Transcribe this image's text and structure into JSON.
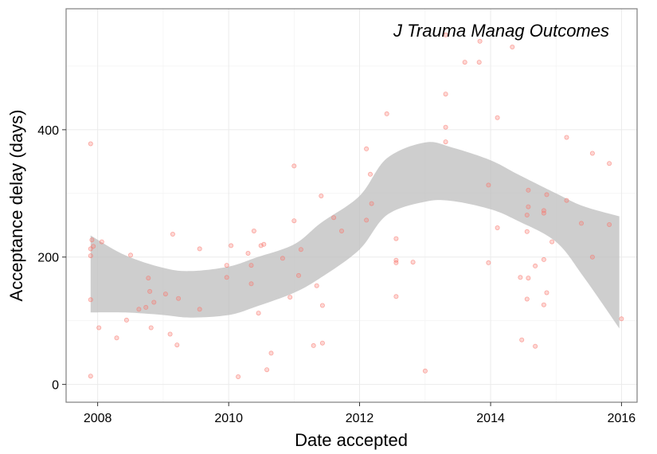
{
  "chart_data": {
    "type": "scatter",
    "title": "",
    "annotation": "J Trauma Manag Outcomes",
    "xlabel": "Date accepted",
    "ylabel": "Acceptance delay (days)",
    "xlim": [
      "2007-07-09",
      "2016-03-28"
    ],
    "ylim": [
      -28,
      590
    ],
    "x_ticks": [
      "2008-01-01",
      "2010-01-01",
      "2012-01-01",
      "2014-01-01",
      "2016-01-01"
    ],
    "x_tick_labels": [
      "2008",
      "2010",
      "2012",
      "2014",
      "2016"
    ],
    "y_ticks": [
      0,
      200,
      400
    ],
    "y_tick_labels": [
      "0",
      "200",
      "400"
    ],
    "grid": true,
    "point_color": "#f8766d",
    "ribbon_color": "#bdbdbd",
    "points": [
      {
        "x": "2007-11-23",
        "y": 378
      },
      {
        "x": "2007-11-23",
        "y": 213
      },
      {
        "x": "2007-11-23",
        "y": 202
      },
      {
        "x": "2007-11-23",
        "y": 133
      },
      {
        "x": "2007-11-23",
        "y": 13
      },
      {
        "x": "2007-11-30",
        "y": 227
      },
      {
        "x": "2007-12-08",
        "y": 217
      },
      {
        "x": "2008-01-08",
        "y": 89
      },
      {
        "x": "2008-01-24",
        "y": 224
      },
      {
        "x": "2008-04-16",
        "y": 73
      },
      {
        "x": "2008-06-10",
        "y": 101
      },
      {
        "x": "2008-07-03",
        "y": 203
      },
      {
        "x": "2008-08-18",
        "y": 118
      },
      {
        "x": "2008-09-26",
        "y": 121
      },
      {
        "x": "2008-10-10",
        "y": 167
      },
      {
        "x": "2008-10-18",
        "y": 146
      },
      {
        "x": "2008-10-25",
        "y": 89
      },
      {
        "x": "2008-11-10",
        "y": 129
      },
      {
        "x": "2009-01-14",
        "y": 142
      },
      {
        "x": "2009-02-08",
        "y": 79
      },
      {
        "x": "2009-02-23",
        "y": 236
      },
      {
        "x": "2009-03-19",
        "y": 62
      },
      {
        "x": "2009-03-27",
        "y": 135
      },
      {
        "x": "2009-07-23",
        "y": 213
      },
      {
        "x": "2009-07-23",
        "y": 118
      },
      {
        "x": "2009-12-21",
        "y": 187
      },
      {
        "x": "2009-12-21",
        "y": 168
      },
      {
        "x": "2010-01-14",
        "y": 218
      },
      {
        "x": "2010-02-23",
        "y": 12
      },
      {
        "x": "2010-04-19",
        "y": 206
      },
      {
        "x": "2010-05-07",
        "y": 187
      },
      {
        "x": "2010-05-07",
        "y": 158
      },
      {
        "x": "2010-05-22",
        "y": 241
      },
      {
        "x": "2010-06-16",
        "y": 112
      },
      {
        "x": "2010-06-30",
        "y": 218
      },
      {
        "x": "2010-07-16",
        "y": 220
      },
      {
        "x": "2010-08-02",
        "y": 23
      },
      {
        "x": "2010-08-26",
        "y": 49
      },
      {
        "x": "2010-10-29",
        "y": 198
      },
      {
        "x": "2010-12-09",
        "y": 137
      },
      {
        "x": "2011-01-01",
        "y": 343
      },
      {
        "x": "2011-01-01",
        "y": 257
      },
      {
        "x": "2011-01-26",
        "y": 171
      },
      {
        "x": "2011-02-08",
        "y": 212
      },
      {
        "x": "2011-04-19",
        "y": 61
      },
      {
        "x": "2011-05-07",
        "y": 155
      },
      {
        "x": "2011-06-01",
        "y": 296
      },
      {
        "x": "2011-06-08",
        "y": 124
      },
      {
        "x": "2011-06-08",
        "y": 65
      },
      {
        "x": "2011-08-10",
        "y": 262
      },
      {
        "x": "2011-09-23",
        "y": 241
      },
      {
        "x": "2012-02-08",
        "y": 370
      },
      {
        "x": "2012-02-08",
        "y": 258
      },
      {
        "x": "2012-03-01",
        "y": 330
      },
      {
        "x": "2012-03-08",
        "y": 284
      },
      {
        "x": "2012-06-01",
        "y": 425
      },
      {
        "x": "2012-07-23",
        "y": 229
      },
      {
        "x": "2012-07-23",
        "y": 195
      },
      {
        "x": "2012-07-23",
        "y": 191
      },
      {
        "x": "2012-07-23",
        "y": 138
      },
      {
        "x": "2012-10-25",
        "y": 192
      },
      {
        "x": "2013-01-01",
        "y": 21
      },
      {
        "x": "2013-04-25",
        "y": 549
      },
      {
        "x": "2013-04-25",
        "y": 456
      },
      {
        "x": "2013-04-25",
        "y": 404
      },
      {
        "x": "2013-04-25",
        "y": 381
      },
      {
        "x": "2013-08-10",
        "y": 506
      },
      {
        "x": "2013-10-29",
        "y": 506
      },
      {
        "x": "2013-11-02",
        "y": 539
      },
      {
        "x": "2013-12-20",
        "y": 313
      },
      {
        "x": "2013-12-20",
        "y": 191
      },
      {
        "x": "2014-02-08",
        "y": 419
      },
      {
        "x": "2014-02-08",
        "y": 246
      },
      {
        "x": "2014-05-02",
        "y": 530
      },
      {
        "x": "2014-06-16",
        "y": 168
      },
      {
        "x": "2014-06-24",
        "y": 70
      },
      {
        "x": "2014-07-23",
        "y": 266
      },
      {
        "x": "2014-07-23",
        "y": 240
      },
      {
        "x": "2014-07-23",
        "y": 134
      },
      {
        "x": "2014-07-30",
        "y": 305
      },
      {
        "x": "2014-07-30",
        "y": 279
      },
      {
        "x": "2014-07-30",
        "y": 167
      },
      {
        "x": "2014-09-07",
        "y": 186
      },
      {
        "x": "2014-09-07",
        "y": 60
      },
      {
        "x": "2014-10-25",
        "y": 273
      },
      {
        "x": "2014-10-25",
        "y": 269
      },
      {
        "x": "2014-10-25",
        "y": 196
      },
      {
        "x": "2014-10-25",
        "y": 125
      },
      {
        "x": "2014-11-10",
        "y": 298
      },
      {
        "x": "2014-11-10",
        "y": 144
      },
      {
        "x": "2014-12-09",
        "y": 224
      },
      {
        "x": "2015-03-01",
        "y": 388
      },
      {
        "x": "2015-03-01",
        "y": 289
      },
      {
        "x": "2015-05-22",
        "y": 253
      },
      {
        "x": "2015-07-23",
        "y": 363
      },
      {
        "x": "2015-07-23",
        "y": 200
      },
      {
        "x": "2015-10-25",
        "y": 347
      },
      {
        "x": "2015-10-25",
        "y": 251
      },
      {
        "x": "2016-01-01",
        "y": 103
      }
    ],
    "smooth_band": {
      "x": [
        "2007-11-23",
        "2008-06-01",
        "2009-01-01",
        "2009-06-01",
        "2010-01-01",
        "2010-06-01",
        "2011-01-01",
        "2011-06-01",
        "2012-01-01",
        "2012-06-01",
        "2013-01-01",
        "2013-06-01",
        "2014-01-01",
        "2014-06-01",
        "2015-01-01",
        "2015-06-01",
        "2015-12-20"
      ],
      "lower": [
        113,
        113,
        109,
        105,
        109,
        122,
        144,
        168,
        212,
        266,
        287,
        288,
        275,
        257,
        224,
        170,
        88
      ],
      "upper": [
        234,
        203,
        183,
        178,
        185,
        199,
        220,
        254,
        296,
        355,
        380,
        372,
        352,
        330,
        300,
        280,
        264
      ]
    }
  }
}
